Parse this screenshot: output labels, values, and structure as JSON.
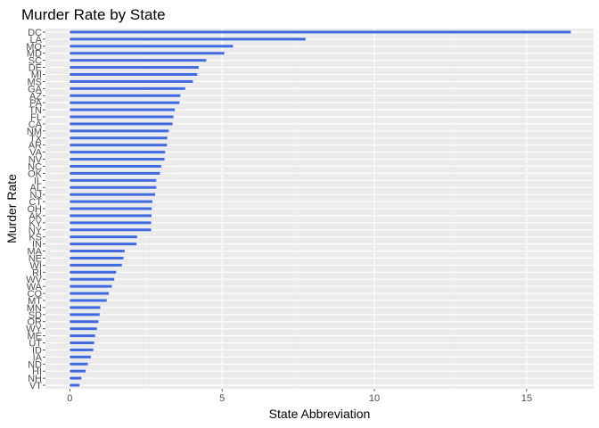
{
  "chart_data": {
    "type": "bar",
    "orientation": "horizontal",
    "title": "Murder Rate by State",
    "xlabel": "State Abbreviation",
    "ylabel": "Murder Rate",
    "xlim": [
      -0.8,
      17.2
    ],
    "xticks": [
      0,
      5,
      10,
      15
    ],
    "grid": true,
    "bar_color": "#4169E1",
    "panel_color": "#EBEBEB",
    "categories": [
      "DC",
      "LA",
      "MO",
      "MD",
      "SC",
      "DE",
      "MI",
      "MS",
      "GA",
      "AZ",
      "PA",
      "TN",
      "FL",
      "CA",
      "NM",
      "TX",
      "AR",
      "VA",
      "NV",
      "NC",
      "OK",
      "IL",
      "AL",
      "NJ",
      "CT",
      "OH",
      "AK",
      "KY",
      "NY",
      "KS",
      "IN",
      "MA",
      "NE",
      "WI",
      "RI",
      "WV",
      "WA",
      "CO",
      "MT",
      "MN",
      "SD",
      "OR",
      "WY",
      "ME",
      "UT",
      "ID",
      "IA",
      "ND",
      "HI",
      "NH",
      "VT"
    ],
    "values": [
      16.45,
      7.74,
      5.36,
      5.07,
      4.48,
      4.23,
      4.18,
      4.04,
      3.79,
      3.63,
      3.6,
      3.45,
      3.4,
      3.37,
      3.25,
      3.2,
      3.19,
      3.13,
      3.11,
      3.0,
      2.96,
      2.84,
      2.84,
      2.8,
      2.71,
      2.69,
      2.68,
      2.67,
      2.67,
      2.21,
      2.19,
      1.8,
      1.76,
      1.71,
      1.52,
      1.46,
      1.38,
      1.28,
      1.21,
      1.0,
      0.98,
      0.94,
      0.89,
      0.83,
      0.8,
      0.77,
      0.69,
      0.59,
      0.52,
      0.38,
      0.32
    ]
  }
}
